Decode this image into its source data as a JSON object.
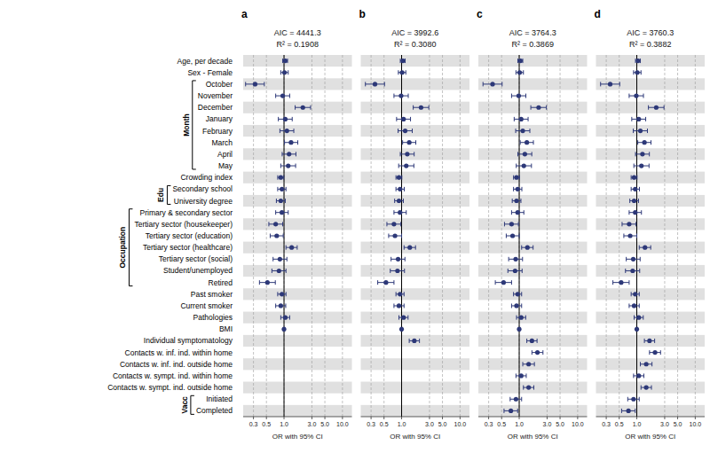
{
  "chart_data": {
    "type": "forest",
    "x_label": "OR with 95% CI",
    "log": "x",
    "xlim": [
      0.2,
      14.5
    ],
    "xticks": [
      {
        "value": 0.3,
        "label": "0.3"
      },
      {
        "value": 0.5,
        "label": "0.5"
      },
      {
        "value": 1.0,
        "label": "1.0"
      },
      {
        "value": 3.0,
        "label": "3.0"
      },
      {
        "value": 5.0,
        "label": "5.0"
      },
      {
        "value": 10.0,
        "label": "10.0"
      }
    ],
    "grid": true,
    "reference_line": 1.0,
    "color": "#2d3878",
    "categories": [
      "Age, per decade",
      "Sex - Female",
      "October",
      "November",
      "December",
      "January",
      "February",
      "March",
      "April",
      "May",
      "Crowding index",
      "Secondary school",
      "University degree",
      "Primary & secondary sector",
      "Tertiary sector (housekeeper)",
      "Tertiary sector (education)",
      "Tertiary sector (healthcare)",
      "Tertiary sector (social)",
      "Student/unemployed",
      "Retired",
      "Past smoker",
      "Current smoker",
      "Pathologies",
      "BMI",
      "Individual symptomatology",
      "Contacts w. inf. ind. within home",
      "Contacts w. inf. ind. outside home",
      "Contacts w. sympt. ind. within home",
      "Contacts w. sympt. ind. outside home",
      "Initiated",
      "Completed"
    ],
    "groups": [
      {
        "label": "Month",
        "first": "October",
        "last": "May"
      },
      {
        "label": "Edu",
        "first": "Secondary school",
        "last": "University degree"
      },
      {
        "label": "Occupation",
        "first": "Primary & secondary sector",
        "last": "Retired"
      },
      {
        "label": "Vacc",
        "first": "Initiated",
        "last": "Completed"
      }
    ],
    "panels": [
      {
        "label": "a",
        "title": "AIC = 4441.3",
        "subtitle": "R² = 0.1908",
        "values": [
          1.05,
          1.02,
          0.32,
          0.95,
          2.1,
          1.05,
          1.12,
          1.32,
          1.22,
          1.18,
          0.88,
          0.92,
          0.88,
          0.92,
          0.72,
          0.75,
          1.35,
          0.85,
          0.82,
          0.52,
          0.92,
          0.88,
          1.05,
          1.0,
          null,
          null,
          null,
          null,
          null,
          null,
          null
        ],
        "ci_low": [
          0.95,
          0.88,
          0.22,
          0.72,
          1.55,
          0.8,
          0.85,
          1.02,
          0.93,
          0.88,
          0.78,
          0.78,
          0.74,
          0.72,
          0.55,
          0.58,
          1.08,
          0.65,
          0.62,
          0.38,
          0.78,
          0.72,
          0.88,
          0.97,
          null,
          null,
          null,
          null,
          null,
          null,
          null
        ],
        "ci_high": [
          1.15,
          1.18,
          0.46,
          1.25,
          2.85,
          1.38,
          1.47,
          1.72,
          1.6,
          1.58,
          0.99,
          1.08,
          1.05,
          1.18,
          0.95,
          0.97,
          1.68,
          1.12,
          1.08,
          0.71,
          1.08,
          1.07,
          1.25,
          1.03,
          null,
          null,
          null,
          null,
          null,
          null,
          null
        ]
      },
      {
        "label": "b",
        "title": "AIC = 3992.6",
        "subtitle": "R² = 0.3080",
        "values": [
          1.05,
          1.02,
          0.35,
          0.98,
          2.15,
          1.08,
          1.15,
          1.35,
          1.25,
          1.2,
          0.9,
          0.94,
          0.9,
          0.94,
          0.74,
          0.77,
          1.38,
          0.87,
          0.85,
          0.54,
          0.94,
          0.9,
          1.08,
          1.0,
          1.65,
          null,
          null,
          null,
          null,
          null,
          null
        ],
        "ci_low": [
          0.95,
          0.88,
          0.24,
          0.74,
          1.58,
          0.82,
          0.87,
          1.04,
          0.95,
          0.89,
          0.8,
          0.8,
          0.76,
          0.74,
          0.56,
          0.6,
          1.1,
          0.66,
          0.64,
          0.39,
          0.8,
          0.74,
          0.9,
          0.97,
          1.35,
          null,
          null,
          null,
          null,
          null,
          null
        ],
        "ci_high": [
          1.15,
          1.18,
          0.51,
          1.3,
          2.92,
          1.42,
          1.52,
          1.75,
          1.64,
          1.62,
          1.01,
          1.11,
          1.07,
          1.2,
          0.97,
          1.0,
          1.73,
          1.14,
          1.12,
          0.74,
          1.1,
          1.1,
          1.29,
          1.03,
          2.02,
          null,
          null,
          null,
          null,
          null,
          null
        ]
      },
      {
        "label": "c",
        "title": "AIC = 3764.3",
        "subtitle": "R² = 0.3869",
        "values": [
          1.05,
          1.02,
          0.35,
          0.98,
          2.15,
          1.08,
          1.15,
          1.35,
          1.25,
          1.2,
          0.9,
          0.94,
          0.9,
          0.94,
          0.74,
          0.77,
          1.38,
          0.87,
          0.85,
          0.54,
          0.94,
          0.9,
          1.08,
          1.0,
          1.65,
          2.05,
          1.45,
          1.08,
          1.45,
          0.88,
          0.72
        ],
        "ci_low": [
          0.95,
          0.88,
          0.24,
          0.74,
          1.58,
          0.82,
          0.87,
          1.04,
          0.95,
          0.89,
          0.8,
          0.8,
          0.76,
          0.74,
          0.56,
          0.6,
          1.1,
          0.66,
          0.64,
          0.39,
          0.8,
          0.74,
          0.9,
          0.97,
          1.35,
          1.65,
          1.15,
          0.88,
          1.18,
          0.7,
          0.55
        ],
        "ci_high": [
          1.15,
          1.18,
          0.51,
          1.3,
          2.92,
          1.42,
          1.52,
          1.75,
          1.64,
          1.62,
          1.01,
          1.11,
          1.07,
          1.2,
          0.97,
          1.0,
          1.73,
          1.14,
          1.12,
          0.74,
          1.1,
          1.1,
          1.29,
          1.03,
          2.02,
          2.55,
          1.82,
          1.32,
          1.78,
          1.1,
          0.94
        ]
      },
      {
        "label": "d",
        "title": "AIC = 3760.3",
        "subtitle": "R² = 0.3882",
        "values": [
          1.05,
          1.02,
          0.35,
          0.98,
          2.15,
          1.08,
          1.15,
          1.35,
          1.25,
          1.2,
          0.9,
          0.94,
          0.9,
          0.94,
          0.74,
          0.77,
          1.38,
          0.87,
          0.85,
          0.54,
          0.94,
          0.9,
          1.08,
          1.0,
          1.65,
          2.05,
          1.45,
          1.08,
          1.45,
          0.88,
          0.72
        ],
        "ci_low": [
          0.95,
          0.88,
          0.24,
          0.74,
          1.58,
          0.82,
          0.87,
          1.04,
          0.95,
          0.89,
          0.8,
          0.8,
          0.76,
          0.74,
          0.56,
          0.6,
          1.1,
          0.66,
          0.64,
          0.39,
          0.8,
          0.74,
          0.9,
          0.97,
          1.35,
          1.65,
          1.15,
          0.88,
          1.18,
          0.7,
          0.55
        ],
        "ci_high": [
          1.15,
          1.18,
          0.51,
          1.3,
          2.92,
          1.42,
          1.52,
          1.75,
          1.64,
          1.62,
          1.01,
          1.11,
          1.07,
          1.2,
          0.97,
          1.0,
          1.73,
          1.14,
          1.12,
          0.74,
          1.1,
          1.1,
          1.29,
          1.03,
          2.02,
          2.55,
          1.82,
          1.32,
          1.78,
          1.1,
          0.94
        ]
      }
    ]
  }
}
